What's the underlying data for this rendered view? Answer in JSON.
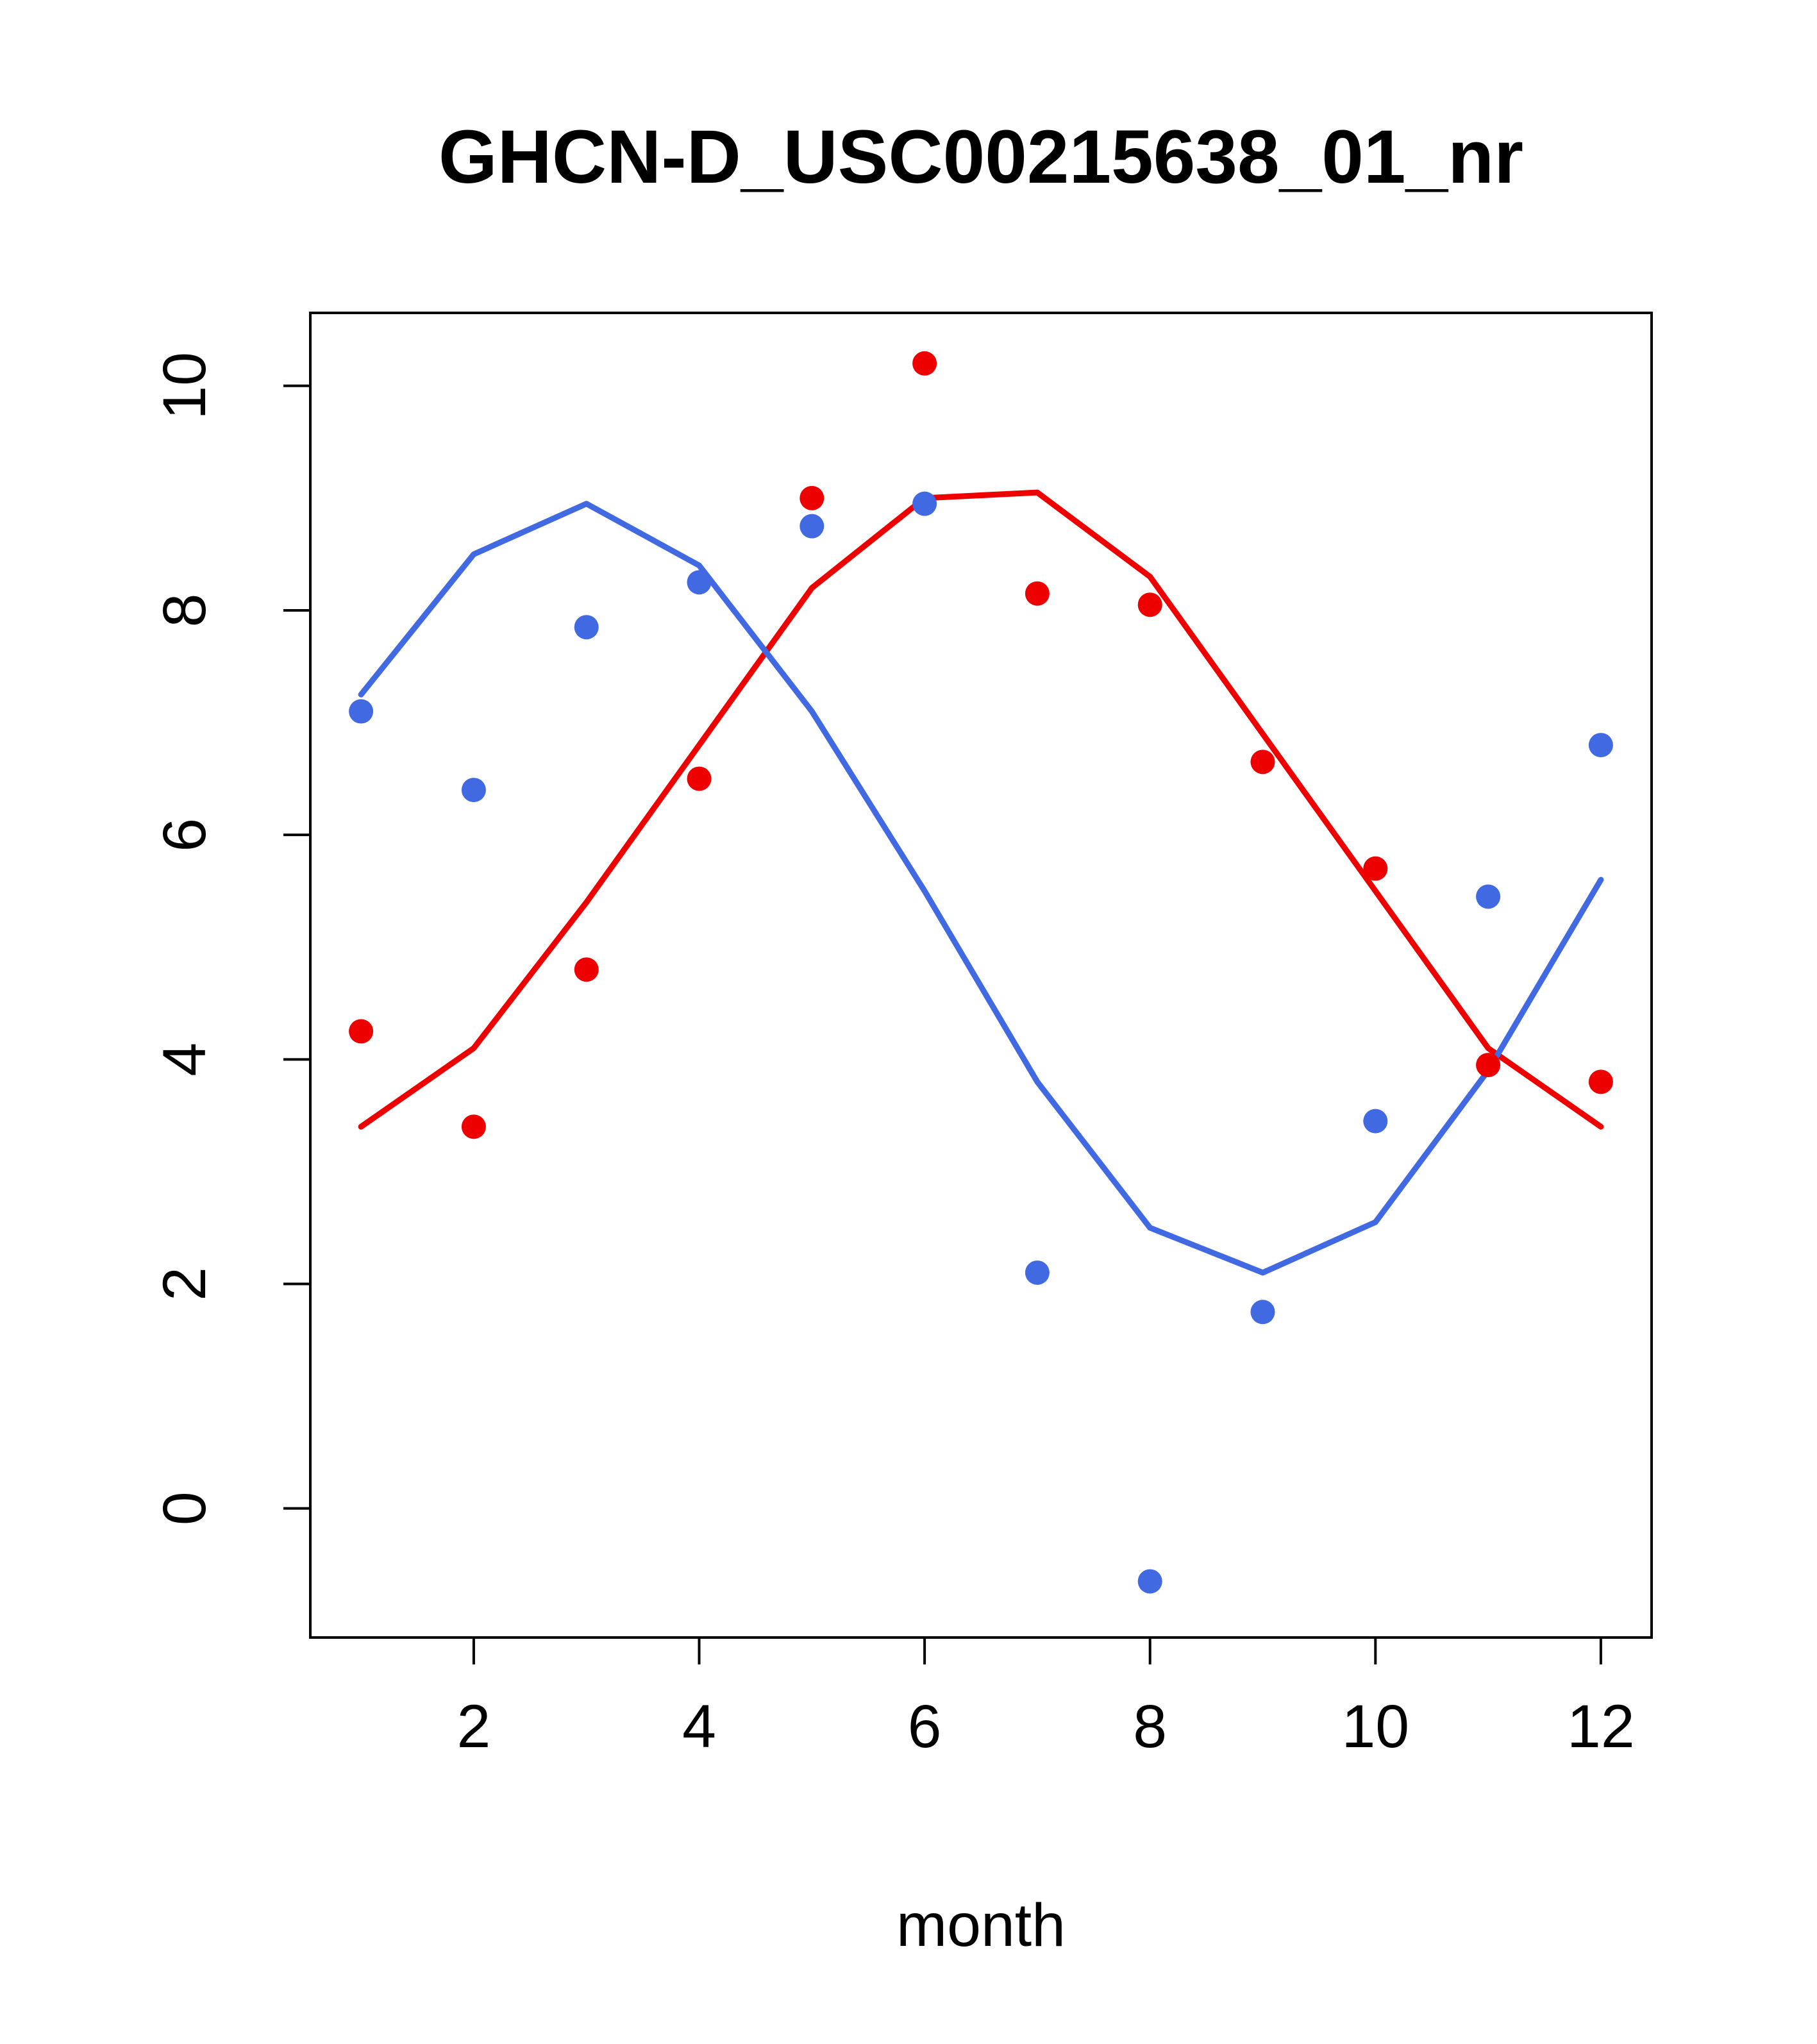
{
  "page": {
    "background": "#ffffff"
  },
  "axis_style": {
    "box_color": "#000000",
    "tick_color": "#000000",
    "text_color": "#000000"
  },
  "chart_data": {
    "type": "scatter",
    "title": "GHCN-D_USC00215638_01_nr",
    "xlabel": "month",
    "ylabel": "",
    "grid": false,
    "legend": "none",
    "xlim": [
      0.55,
      12.45
    ],
    "ylim": [
      -1.15,
      10.65
    ],
    "xticks": [
      2,
      4,
      6,
      8,
      10,
      12
    ],
    "yticks": [
      0,
      2,
      4,
      6,
      8,
      10
    ],
    "x": [
      1,
      2,
      3,
      4,
      5,
      6,
      7,
      8,
      9,
      10,
      11,
      12
    ],
    "series": [
      {
        "name": "red-series",
        "color": "#ee0000",
        "marker": "filled-circle",
        "points": [
          4.25,
          3.4,
          4.8,
          6.5,
          9.0,
          10.2,
          8.15,
          8.05,
          6.65,
          5.7,
          3.95,
          3.8
        ],
        "smooth_line": [
          3.4,
          4.1,
          5.4,
          6.8,
          8.2,
          9.0,
          9.05,
          8.3,
          6.9,
          5.5,
          4.1,
          3.4
        ]
      },
      {
        "name": "blue-series",
        "color": "#4169e1",
        "marker": "filled-circle",
        "points": [
          7.1,
          6.4,
          7.85,
          8.25,
          8.75,
          8.95,
          2.1,
          -0.65,
          1.75,
          3.45,
          5.45,
          6.8
        ],
        "smooth_line": [
          7.25,
          8.5,
          8.95,
          8.4,
          7.1,
          5.5,
          3.8,
          2.5,
          2.1,
          2.55,
          3.9,
          5.6
        ]
      }
    ]
  }
}
